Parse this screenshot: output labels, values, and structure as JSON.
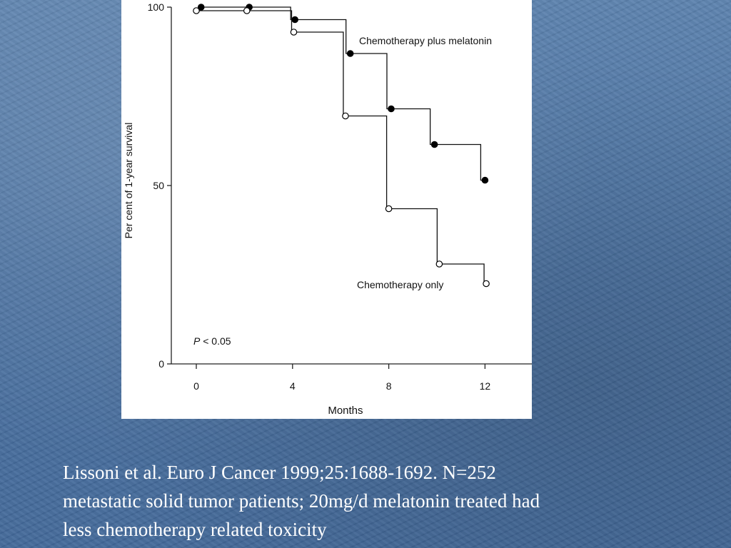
{
  "chart_data": {
    "type": "line",
    "step": true,
    "xlabel": "Months",
    "ylabel": "Per cent of 1-year survival",
    "x_ticks": [
      0,
      4,
      8,
      12
    ],
    "y_ticks": [
      0,
      50,
      100
    ],
    "xlim": [
      0,
      14
    ],
    "ylim": [
      0,
      100
    ],
    "annotation": {
      "italic": "P",
      "rest": " < 0.05"
    },
    "series": [
      {
        "name": "Chemotherapy plus melatonin",
        "marker": "filled",
        "x": [
          0.2,
          2.2,
          4.1,
          6.4,
          8.1,
          9.9,
          12.0
        ],
        "y": [
          100,
          100,
          96.5,
          87,
          71.5,
          61.5,
          51.5
        ]
      },
      {
        "name": "Chemotherapy only",
        "marker": "open",
        "x": [
          0.0,
          2.1,
          4.05,
          6.2,
          8.0,
          10.1,
          12.05
        ],
        "y": [
          99,
          99,
          93,
          69.5,
          43.5,
          28,
          22.5
        ]
      }
    ]
  },
  "caption": {
    "line1": "Lissoni et al. Euro J Cancer 1999;25:1688-1692. N=252",
    "line2": "metastatic solid tumor patients; 20mg/d melatonin treated had",
    "line3": "less chemotherapy related toxicity"
  }
}
